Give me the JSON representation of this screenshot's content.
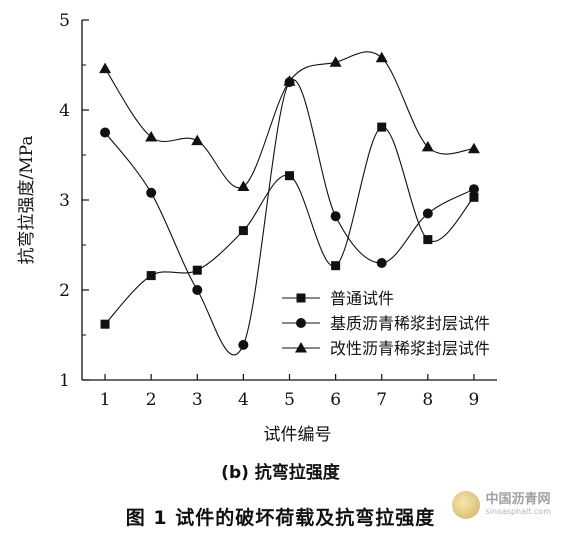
{
  "chart_data": {
    "type": "line",
    "xlabel": "试件编号",
    "ylabel": "抗弯拉强度/MPa",
    "x": [
      1,
      2,
      3,
      4,
      5,
      6,
      7,
      8,
      9
    ],
    "xlim": [
      0.5,
      9.5
    ],
    "ylim": [
      1,
      5
    ],
    "xticks": [
      "1",
      "2",
      "3",
      "4",
      "5",
      "6",
      "7",
      "8",
      "9"
    ],
    "yticks": [
      "1",
      "2",
      "3",
      "4",
      "5"
    ],
    "grid": false,
    "legend_position": "bottom-right",
    "series": [
      {
        "name": "普通试件",
        "marker": "square",
        "values": [
          1.62,
          2.16,
          2.22,
          2.66,
          3.27,
          2.27,
          3.81,
          2.56,
          3.03
        ]
      },
      {
        "name": "基质沥青稀浆封层试件",
        "marker": "circle",
        "values": [
          3.75,
          3.08,
          2.0,
          1.39,
          4.31,
          2.82,
          2.3,
          2.85,
          3.12
        ]
      },
      {
        "name": "改性沥青稀浆封层试件",
        "marker": "triangle",
        "values": [
          4.46,
          3.7,
          3.66,
          3.15,
          4.32,
          4.53,
          4.58,
          3.59,
          3.57
        ]
      }
    ]
  },
  "subcaption": "(b)   抗弯拉强度",
  "caption": "图 1   试件的破坏荷载及抗弯拉强度",
  "watermark": {
    "name": "中国沥青网",
    "url": "sinoasphalt.com"
  }
}
